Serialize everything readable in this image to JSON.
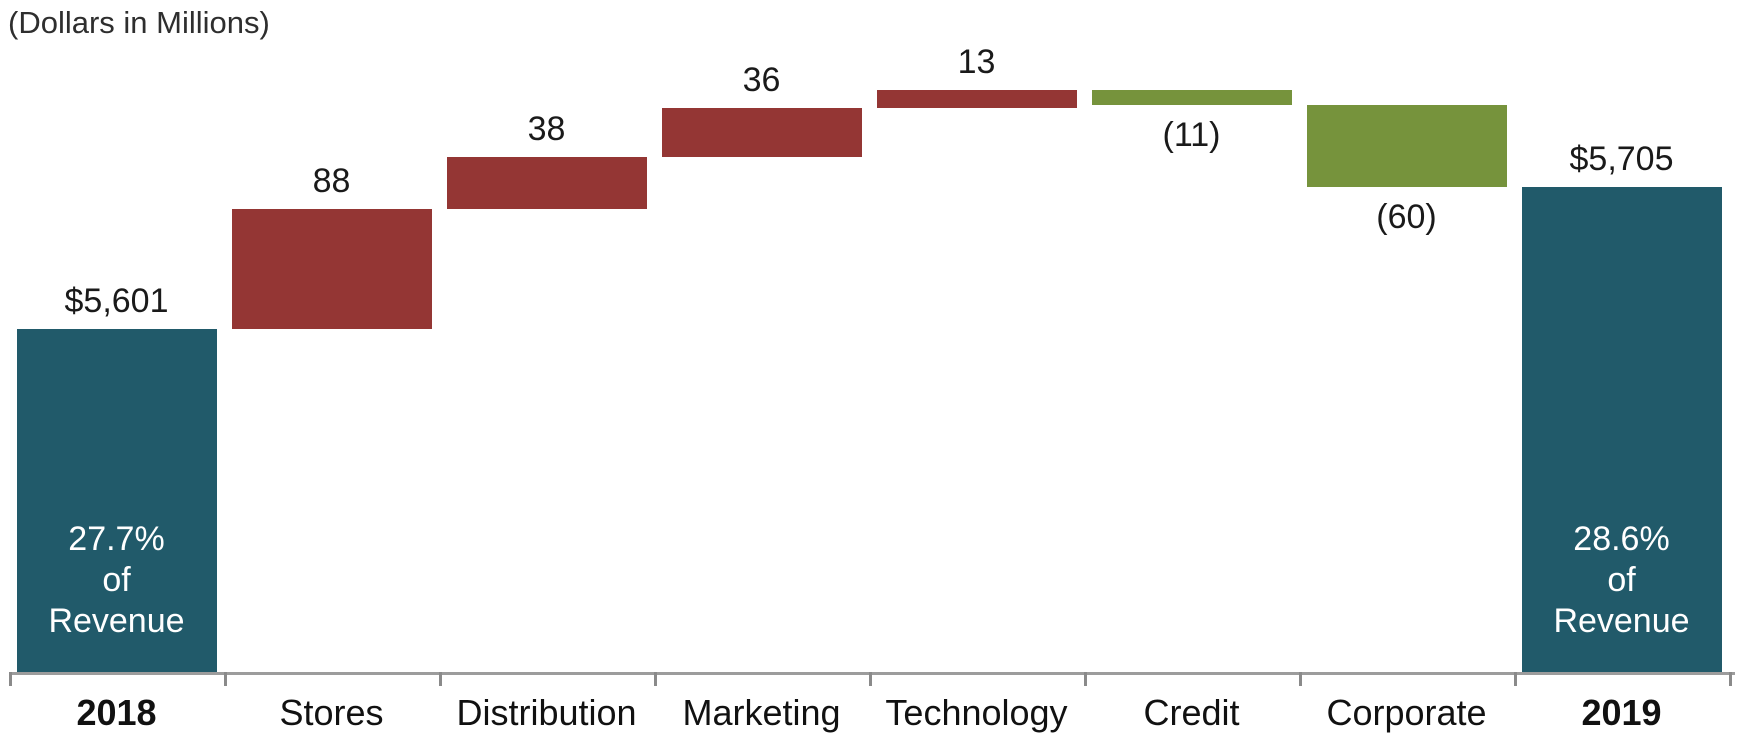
{
  "chart_data": {
    "type": "bar",
    "subtype": "waterfall",
    "title": "(Dollars in Millions)",
    "categories": [
      "2018",
      "Stores",
      "Distribution",
      "Marketing",
      "Technology",
      "Credit",
      "Corporate",
      "2019"
    ],
    "bars": [
      {
        "label": "2018",
        "kind": "total",
        "value": 5601,
        "display": "$5,601",
        "label_position": "above",
        "inner_label": [
          "27.7%",
          "of",
          "Revenue"
        ]
      },
      {
        "label": "Stores",
        "kind": "increase",
        "value": 88,
        "display": "88",
        "label_position": "above"
      },
      {
        "label": "Distribution",
        "kind": "increase",
        "value": 38,
        "display": "38",
        "label_position": "above"
      },
      {
        "label": "Marketing",
        "kind": "increase",
        "value": 36,
        "display": "36",
        "label_position": "above"
      },
      {
        "label": "Technology",
        "kind": "increase",
        "value": 13,
        "display": "13",
        "label_position": "above"
      },
      {
        "label": "Credit",
        "kind": "decrease",
        "value": -11,
        "display": "(11)",
        "label_position": "below"
      },
      {
        "label": "Corporate",
        "kind": "decrease",
        "value": -60,
        "display": "(60)",
        "label_position": "below"
      },
      {
        "label": "2019",
        "kind": "total",
        "value": 5705,
        "display": "$5,705",
        "label_position": "above",
        "inner_label": [
          "28.6%",
          "of",
          "Revenue"
        ]
      }
    ],
    "colors": {
      "total": "#215A6A",
      "increase": "#943634",
      "decrease": "#76933C",
      "axis": "#9C9C9C",
      "label_text": "#1A1A1A",
      "inner_text": "#FFFFFF"
    },
    "value_axis": {
      "min": 5350,
      "max": 5810,
      "gridlines": false,
      "tick_labels": false
    },
    "legend": "none"
  }
}
